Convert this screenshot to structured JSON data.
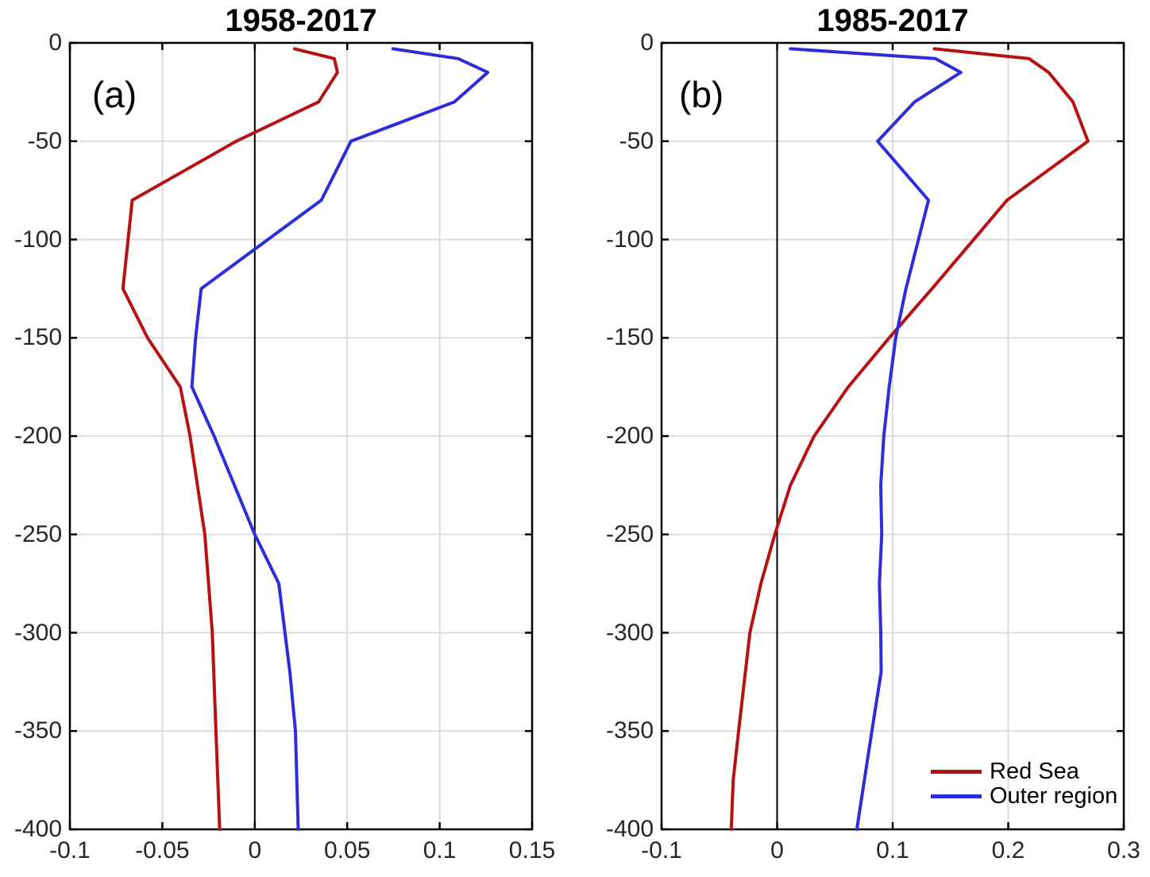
{
  "figure": {
    "background": "#ffffff",
    "axis_color": "#000000",
    "grid_color": "#d9d9d9",
    "zero_line_color": "#000000",
    "tick_label_color": "#262626"
  },
  "legend": {
    "items": [
      {
        "label": "Red Sea",
        "color": "#b71114"
      },
      {
        "label": "Outer region",
        "color": "#2d2dd9"
      }
    ]
  },
  "chart_data": [
    {
      "type": "line",
      "panel": "a",
      "panel_label": "(a)",
      "title": "1958-2017",
      "xlabel": "",
      "ylabel": "",
      "grid": true,
      "zero_line_x": 0,
      "x_axis": {
        "min": -0.1,
        "max": 0.15,
        "ticks": [
          -0.1,
          -0.05,
          0,
          0.05,
          0.1,
          0.15
        ],
        "tick_labels": [
          "-0.1",
          "-0.05",
          "0",
          "0.05",
          "0.1",
          "0.15"
        ]
      },
      "y_axis": {
        "min": -400,
        "max": 0,
        "ticks": [
          0,
          -50,
          -100,
          -150,
          -200,
          -250,
          -300,
          -350,
          -400
        ],
        "tick_labels": [
          "0",
          "-50",
          "-100",
          "-150",
          "-200",
          "-250",
          "-300",
          "-350",
          "-400"
        ]
      },
      "series": [
        {
          "name": "Red Sea",
          "color": "#b71114",
          "points": [
            [
              0.0215,
              -3
            ],
            [
              0.043,
              -8
            ],
            [
              0.0447,
              -15
            ],
            [
              0.0345,
              -30
            ],
            [
              -0.01,
              -50
            ],
            [
              -0.0663,
              -80
            ],
            [
              -0.0713,
              -125
            ],
            [
              -0.058,
              -150
            ],
            [
              -0.0403,
              -175
            ],
            [
              -0.035,
              -200
            ],
            [
              -0.027,
              -250
            ],
            [
              -0.023,
              -300
            ],
            [
              -0.021,
              -350
            ],
            [
              -0.019,
              -400
            ]
          ]
        },
        {
          "name": "Outer region",
          "color": "#2d2dd9",
          "points": [
            [
              0.0747,
              -3
            ],
            [
              0.11,
              -8
            ],
            [
              0.126,
              -15
            ],
            [
              0.108,
              -30
            ],
            [
              0.052,
              -50
            ],
            [
              0.036,
              -80
            ],
            [
              -0.029,
              -125
            ],
            [
              -0.032,
              -150
            ],
            [
              -0.034,
              -175
            ],
            [
              -0.022,
              -200
            ],
            [
              0.0,
              -250
            ],
            [
              0.013,
              -275
            ],
            [
              0.019,
              -320
            ],
            [
              0.022,
              -350
            ],
            [
              0.0235,
              -400
            ]
          ]
        }
      ]
    },
    {
      "type": "line",
      "panel": "b",
      "panel_label": "(b)",
      "title": "1985-2017",
      "xlabel": "",
      "ylabel": "",
      "grid": true,
      "zero_line_x": 0,
      "x_axis": {
        "min": -0.1,
        "max": 0.3,
        "ticks": [
          -0.1,
          0,
          0.1,
          0.2,
          0.3
        ],
        "tick_labels": [
          "-0.1",
          "0",
          "0.1",
          "0.2",
          "0.3"
        ]
      },
      "y_axis": {
        "min": -400,
        "max": 0,
        "ticks": [
          0,
          -50,
          -100,
          -150,
          -200,
          -250,
          -300,
          -350,
          -400
        ],
        "tick_labels": [
          "0",
          "-50",
          "-100",
          "-150",
          "-200",
          "-250",
          "-300",
          "-350",
          "-400"
        ]
      },
      "series": [
        {
          "name": "Red Sea",
          "color": "#b71114",
          "points": [
            [
              0.136,
              -3
            ],
            [
              0.218,
              -8
            ],
            [
              0.235,
              -15
            ],
            [
              0.256,
              -30
            ],
            [
              0.269,
              -50
            ],
            [
              0.199,
              -80
            ],
            [
              0.134,
              -125
            ],
            [
              0.097,
              -150
            ],
            [
              0.0615,
              -175
            ],
            [
              0.032,
              -200
            ],
            [
              0.0115,
              -225
            ],
            [
              -0.002,
              -250
            ],
            [
              -0.014,
              -275
            ],
            [
              -0.0236,
              -300
            ],
            [
              -0.0333,
              -350
            ],
            [
              -0.038,
              -375
            ],
            [
              -0.0397,
              -400
            ]
          ]
        },
        {
          "name": "Outer region",
          "color": "#2d2dd9",
          "points": [
            [
              0.0115,
              -3
            ],
            [
              0.137,
              -8
            ],
            [
              0.159,
              -15
            ],
            [
              0.119,
              -30
            ],
            [
              0.087,
              -50
            ],
            [
              0.131,
              -80
            ],
            [
              0.1115,
              -125
            ],
            [
              0.1026,
              -150
            ],
            [
              0.097,
              -175
            ],
            [
              0.0923,
              -200
            ],
            [
              0.0897,
              -225
            ],
            [
              0.0905,
              -250
            ],
            [
              0.0885,
              -275
            ],
            [
              0.0897,
              -300
            ],
            [
              0.09,
              -320
            ],
            [
              0.082,
              -350
            ],
            [
              0.069,
              -400
            ]
          ]
        }
      ]
    }
  ]
}
